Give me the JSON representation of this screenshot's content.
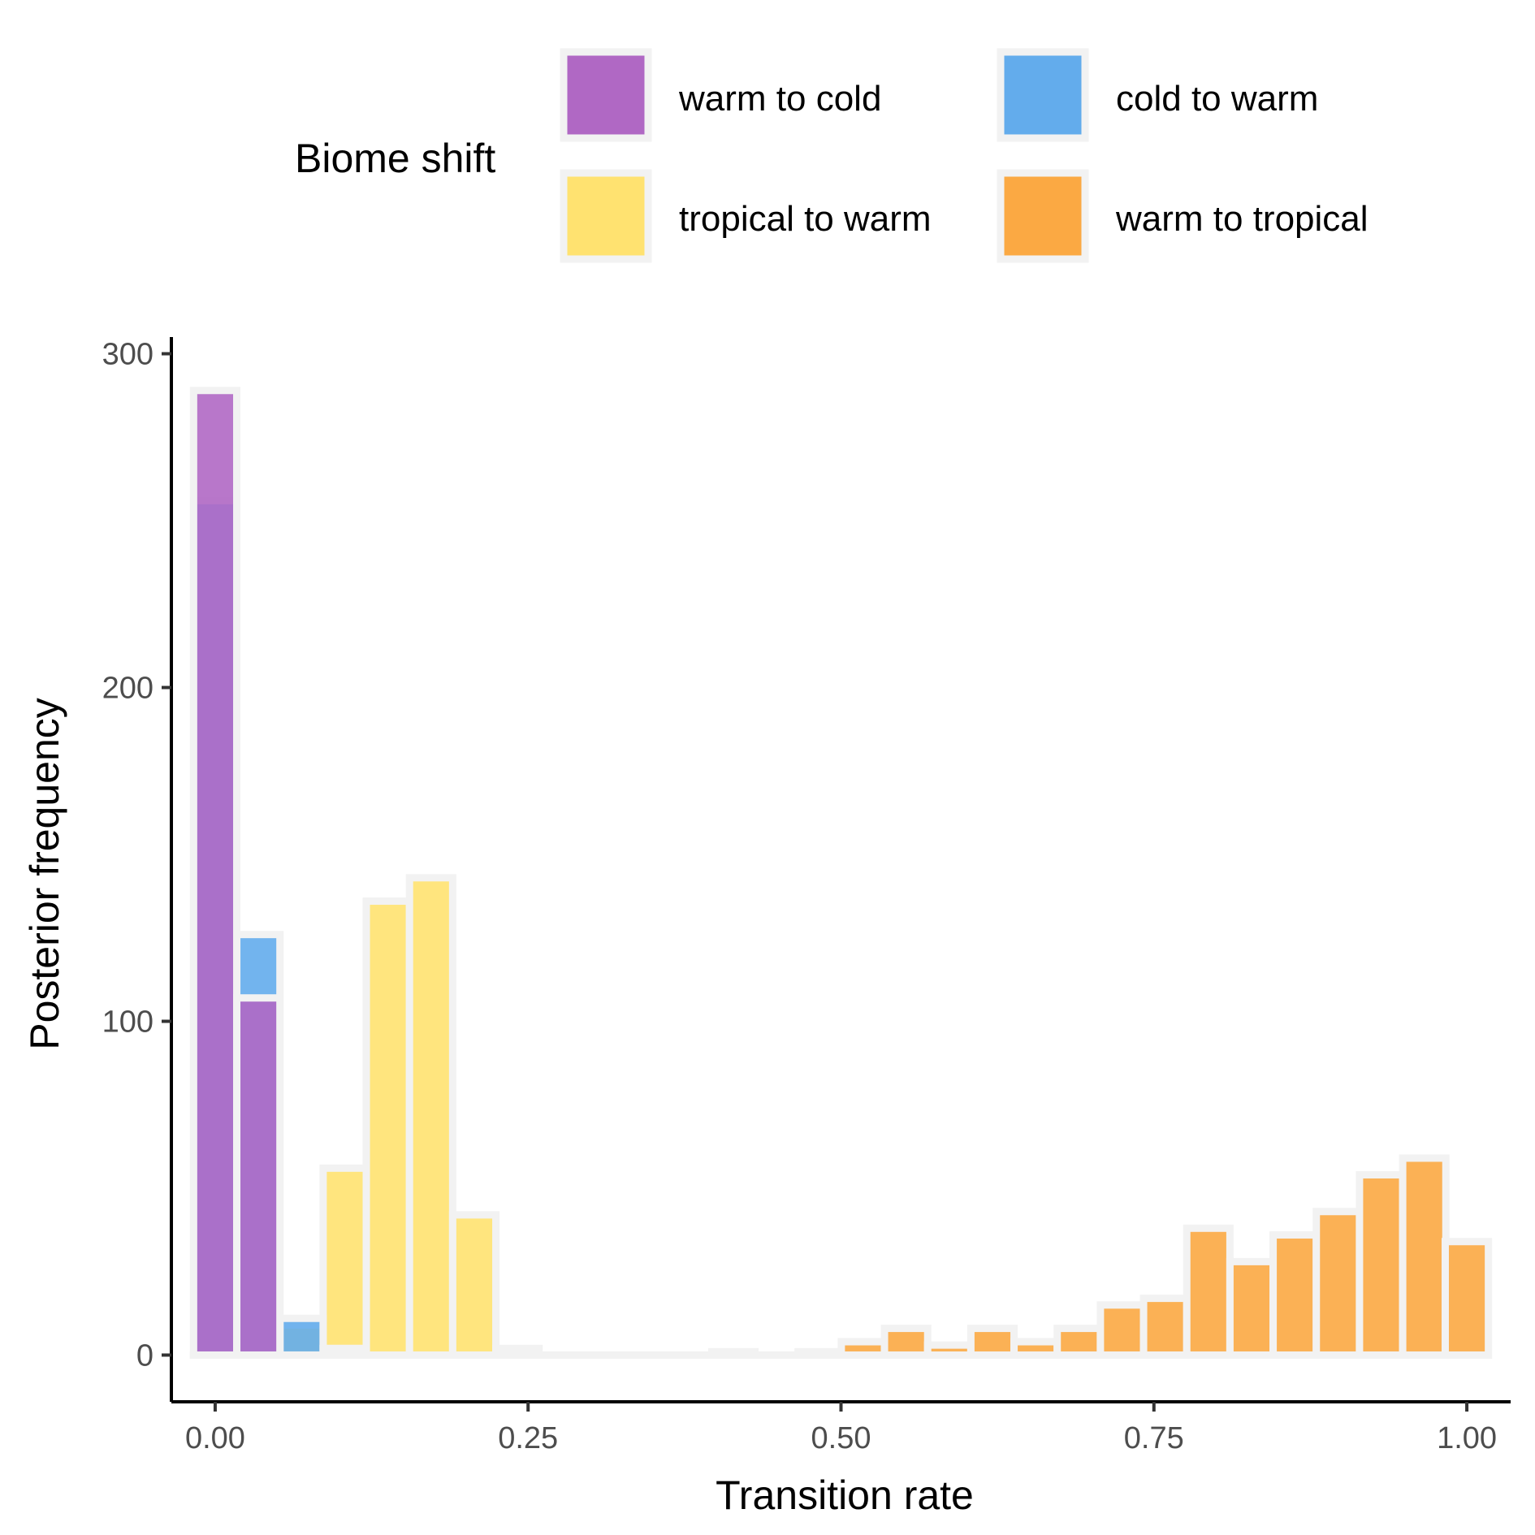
{
  "chart_data": {
    "type": "bar",
    "subtype": "overlapping-histogram",
    "xlabel": "Transition rate",
    "ylabel": "Posterior frequency",
    "xlim": [
      -0.035,
      1.035
    ],
    "ylim": [
      -14,
      305
    ],
    "x_ticks": [
      0.0,
      0.25,
      0.5,
      0.75,
      1.0
    ],
    "x_tick_labels": [
      "0.00",
      "0.25",
      "0.50",
      "0.75",
      "1.00"
    ],
    "y_ticks": [
      0,
      100,
      200,
      300
    ],
    "y_tick_labels": [
      "0",
      "100",
      "200",
      "300"
    ],
    "bin_width": 0.0345,
    "grid": false,
    "legend": {
      "title": "Biome shift",
      "position": "top"
    },
    "bar_outline_color": "#f2f2f2",
    "series": [
      {
        "name": "warm to tropical",
        "color": "#fba943",
        "x": [
          0.0,
          0.0345,
          0.069,
          0.1035,
          0.138,
          0.1725,
          0.207,
          0.2415,
          0.276,
          0.3105,
          0.345,
          0.3795,
          0.414,
          0.4485,
          0.483,
          0.5175,
          0.552,
          0.5865,
          0.621,
          0.6555,
          0.69,
          0.7245,
          0.759,
          0.7935,
          0.828,
          0.8625,
          0.897,
          0.9315,
          0.966,
          1.0
        ],
        "values": [
          0,
          0,
          0,
          0,
          0,
          0,
          0,
          0,
          0,
          0,
          0,
          0,
          1,
          0,
          1,
          4,
          8,
          3,
          8,
          4,
          8,
          15,
          17,
          38,
          28,
          36,
          43,
          54,
          59,
          34
        ]
      },
      {
        "name": "tropical to warm",
        "color": "#ffe270",
        "x": [
          0.0,
          0.0345,
          0.069,
          0.1035,
          0.138,
          0.1725,
          0.207,
          0.2415
        ],
        "values": [
          0,
          0,
          9,
          56,
          136,
          143,
          42,
          2
        ]
      },
      {
        "name": "cold to warm",
        "color": "#63acec",
        "x": [
          0.0,
          0.0345,
          0.069,
          0.1035
        ],
        "values": [
          256,
          126,
          11,
          2
        ]
      },
      {
        "name": "warm to cold",
        "color": "#b068c4",
        "x": [
          0.0,
          0.0345,
          0.069
        ],
        "values": [
          289,
          107,
          0
        ]
      }
    ]
  }
}
